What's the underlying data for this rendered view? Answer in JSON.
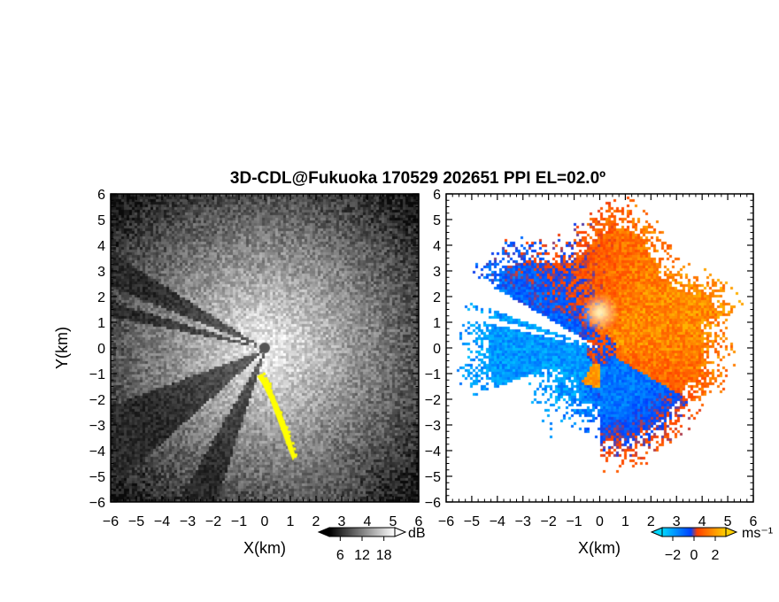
{
  "chart_data": [
    {
      "type": "heatmap",
      "title": "3D-CDL@Fukuoka 170529 202651 PPI EL=02.0º",
      "xlabel": "X(km)",
      "ylabel": "Y(km)",
      "xlim": [
        -6,
        6
      ],
      "ylim": [
        -6,
        6
      ],
      "x_ticks": [
        "−6",
        "−5",
        "−4",
        "−3",
        "−2",
        "−1",
        "0",
        "1",
        "2",
        "3",
        "4",
        "5",
        "6"
      ],
      "y_ticks": [
        "6",
        "5",
        "4",
        "3",
        "2",
        "1",
        "0",
        "−1",
        "−2",
        "−3",
        "−4",
        "−5",
        "−6"
      ],
      "colorbar": {
        "unit": "dB",
        "ticks": [
          "6",
          "12",
          "18"
        ],
        "range": [
          3,
          21
        ],
        "colors": [
          "#000000",
          "#ffffff"
        ]
      },
      "highlight_color": "#ffff00"
    },
    {
      "type": "heatmap",
      "xlabel": "X(km)",
      "xlim": [
        -6,
        6
      ],
      "ylim": [
        -6,
        6
      ],
      "x_ticks": [
        "−6",
        "−5",
        "−4",
        "−3",
        "−2",
        "−1",
        "0",
        "1",
        "2",
        "3",
        "4",
        "5",
        "6"
      ],
      "y_ticks": [
        "6",
        "5",
        "4",
        "3",
        "2",
        "1",
        "0",
        "−1",
        "−2",
        "−3",
        "−4",
        "−5",
        "−6"
      ],
      "colorbar": {
        "unit": "ms⁻¹",
        "ticks": [
          "−2",
          "0",
          "2"
        ],
        "range": [
          -3,
          3
        ],
        "colors": [
          "#00d8ff",
          "#0040ff",
          "#ff4000",
          "#ffd000"
        ]
      }
    }
  ]
}
